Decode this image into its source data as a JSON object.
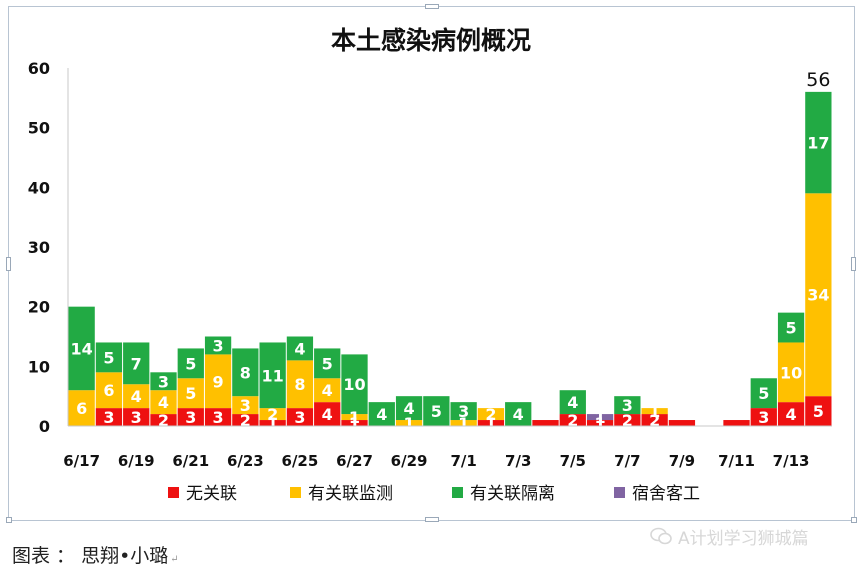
{
  "chart_data": {
    "type": "bar",
    "stacked": true,
    "title": "本土感染病例概况",
    "categories": [
      "6/17",
      "6/18",
      "6/19",
      "6/20",
      "6/21",
      "6/22",
      "6/23",
      "6/24",
      "6/25",
      "6/26",
      "6/27",
      "6/28",
      "6/29",
      "6/30",
      "7/1",
      "7/2",
      "7/3",
      "7/4",
      "7/5",
      "7/6",
      "7/7",
      "7/8",
      "7/9",
      "7/10",
      "7/11",
      "7/12",
      "7/13",
      "7/14"
    ],
    "tick_labels": [
      "6/17",
      "",
      "6/19",
      "",
      "6/21",
      "",
      "6/23",
      "",
      "6/25",
      "",
      "6/27",
      "",
      "6/29",
      "",
      "7/1",
      "",
      "7/3",
      "",
      "7/5",
      "",
      "7/7",
      "",
      "7/9",
      "",
      "7/11",
      "",
      "7/13",
      ""
    ],
    "series": [
      {
        "name": "无关联",
        "color": "#ee1111",
        "values": [
          0,
          3,
          3,
          2,
          3,
          3,
          2,
          1,
          3,
          4,
          1,
          0,
          0,
          0,
          0,
          1,
          0,
          1,
          2,
          1,
          2,
          2,
          1,
          0,
          1,
          3,
          4,
          5
        ],
        "labels": [
          "",
          "3",
          "3",
          "2",
          "3",
          "3",
          "2",
          "1",
          "3",
          "4",
          "1",
          "",
          "",
          "",
          "",
          "1",
          "",
          "",
          "2",
          "1",
          "2",
          "2",
          "",
          "",
          "",
          "3",
          "4",
          "5"
        ]
      },
      {
        "name": "有关联监测",
        "color": "#ffc000",
        "values": [
          6,
          6,
          4,
          4,
          5,
          9,
          3,
          2,
          8,
          4,
          1,
          0,
          1,
          0,
          1,
          2,
          0,
          0,
          0,
          0,
          0,
          1,
          0,
          0,
          0,
          0,
          10,
          34
        ],
        "labels": [
          "6",
          "6",
          "4",
          "4",
          "5",
          "9",
          "3",
          "2",
          "8",
          "4",
          "1",
          "",
          "1",
          "",
          "1",
          "2",
          "",
          "",
          "",
          "",
          "",
          "1",
          "",
          "",
          "",
          "",
          "10",
          "34"
        ]
      },
      {
        "name": "有关联隔离",
        "color": "#22aa44",
        "values": [
          14,
          5,
          7,
          3,
          5,
          3,
          8,
          11,
          4,
          5,
          10,
          4,
          4,
          5,
          3,
          0,
          4,
          0,
          4,
          0,
          3,
          0,
          0,
          0,
          0,
          5,
          5,
          17
        ],
        "labels": [
          "14",
          "5",
          "7",
          "3",
          "5",
          "3",
          "8",
          "11",
          "4",
          "5",
          "10",
          "4",
          "4",
          "5",
          "3",
          "",
          "4",
          "",
          "4",
          "",
          "3",
          "",
          "",
          "",
          "",
          "5",
          "5",
          "17"
        ]
      },
      {
        "name": "宿舍客工",
        "color": "#8064a2",
        "values": [
          0,
          0,
          0,
          0,
          0,
          0,
          0,
          0,
          0,
          0,
          0,
          0,
          0,
          0,
          0,
          0,
          0,
          0,
          0,
          1,
          0,
          0,
          0,
          0,
          0,
          0,
          0,
          0
        ],
        "labels": [
          "",
          "",
          "",
          "",
          "",
          "",
          "",
          "",
          "",
          "",
          "",
          "",
          "",
          "",
          "",
          "",
          "",
          "",
          "",
          "1",
          "",
          "",
          "",
          "",
          "",
          "",
          "",
          ""
        ]
      }
    ],
    "ylim": [
      0,
      60
    ],
    "yticks": [
      "0",
      "10",
      "20",
      "30",
      "40",
      "50",
      "60"
    ],
    "total_label": {
      "category": "7/14",
      "text": "56"
    },
    "legend_position": "bottom",
    "grid": false
  },
  "caption": "图表 ： 思翔•小璐",
  "caption_mark": "↵",
  "watermark": "A计划学习狮城篇"
}
